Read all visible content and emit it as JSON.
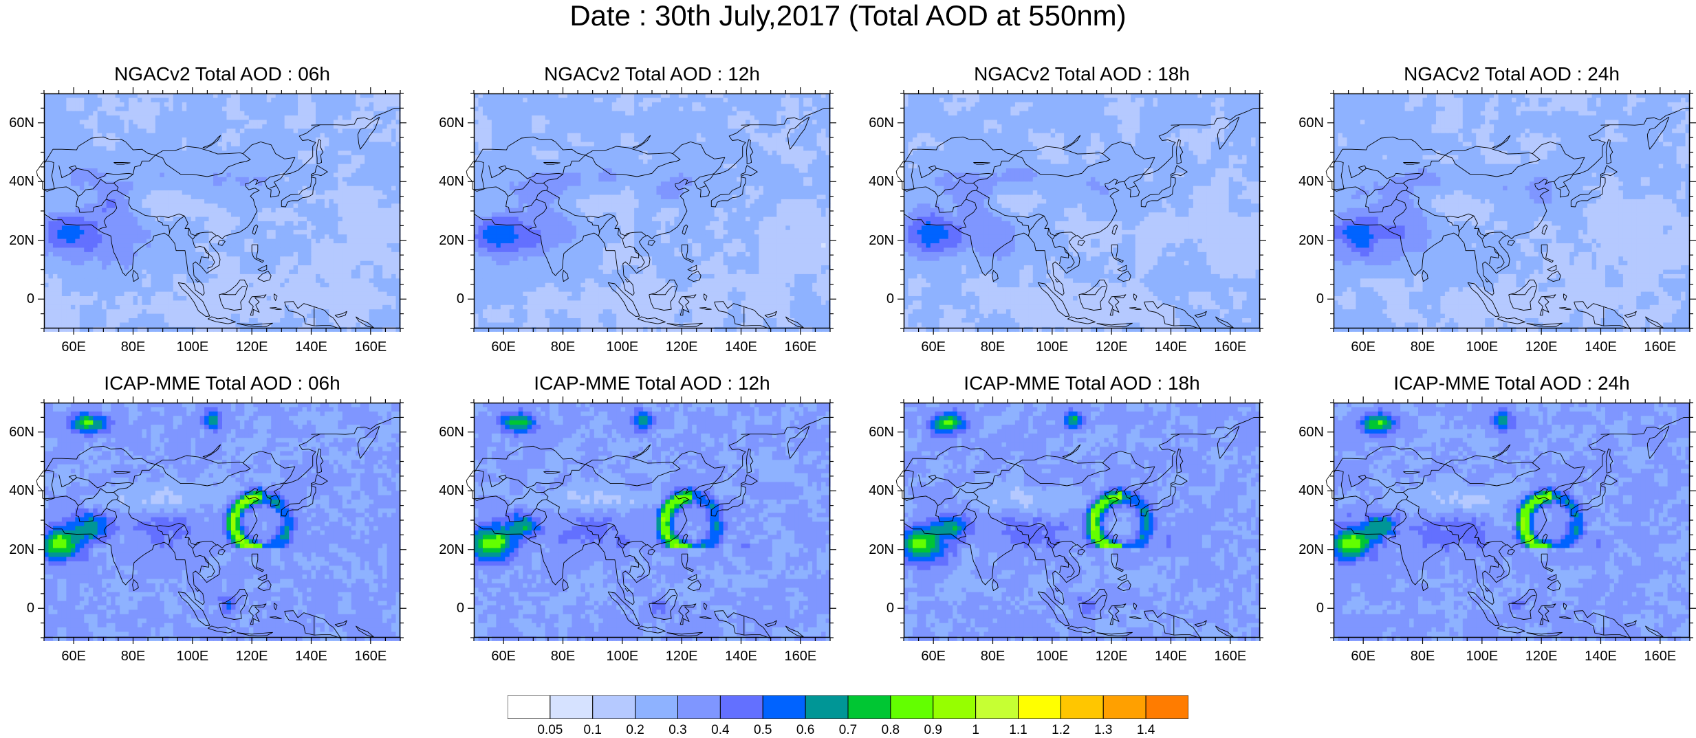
{
  "figure": {
    "title": "Date : 30th July,2017 (Total AOD at 550nm)"
  },
  "panels": [
    {
      "title": "NGACv2 Total AOD : 06h",
      "model": "NGACv2",
      "hour": "06h"
    },
    {
      "title": "NGACv2 Total AOD : 12h",
      "model": "NGACv2",
      "hour": "12h"
    },
    {
      "title": "NGACv2 Total AOD : 18h",
      "model": "NGACv2",
      "hour": "18h"
    },
    {
      "title": "NGACv2 Total AOD : 24h",
      "model": "NGACv2",
      "hour": "24h"
    },
    {
      "title": "ICAP-MME Total AOD : 06h",
      "model": "ICAP-MME",
      "hour": "06h"
    },
    {
      "title": "ICAP-MME Total AOD : 12h",
      "model": "ICAP-MME",
      "hour": "12h"
    },
    {
      "title": "ICAP-MME Total AOD : 18h",
      "model": "ICAP-MME",
      "hour": "18h"
    },
    {
      "title": "ICAP-MME Total AOD : 24h",
      "model": "ICAP-MME",
      "hour": "24h"
    }
  ],
  "axes": {
    "lat_labels": [
      "60N",
      "40N",
      "20N",
      "0"
    ],
    "lat_values": [
      60,
      40,
      20,
      0
    ],
    "lon_labels": [
      "60E",
      "80E",
      "100E",
      "120E",
      "140E",
      "160E"
    ],
    "lon_values": [
      60,
      80,
      100,
      120,
      140,
      160
    ],
    "lon_range": [
      50,
      170
    ],
    "lat_range": [
      -10,
      70
    ]
  },
  "colorbar": {
    "labels": [
      "0.05",
      "0.1",
      "0.2",
      "0.3",
      "0.4",
      "0.5",
      "0.6",
      "0.7",
      "0.8",
      "0.9",
      "1",
      "1.1",
      "1.2",
      "1.3",
      "1.4"
    ],
    "colors": [
      "#ffffff",
      "#d6e2ff",
      "#b5c9ff",
      "#8eb2ff",
      "#7f96ff",
      "#6370ff",
      "#0063ff",
      "#009696",
      "#00c633",
      "#63ff00",
      "#96ff00",
      "#c6ff33",
      "#ffff00",
      "#ffc600",
      "#ffa000",
      "#ff7c00",
      "#ff1900"
    ]
  },
  "colors": {
    "coastline": "#000000"
  }
}
